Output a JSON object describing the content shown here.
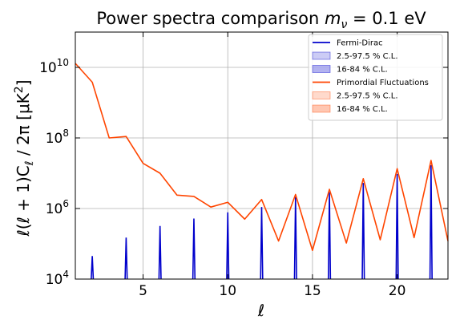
{
  "chart_data": {
    "type": "line",
    "title": "Power spectra comparison $m_\\nu = 0.1$ eV",
    "title_parts": {
      "text": "Power spectra comparison ",
      "math_m": "m",
      "math_sub": "ν",
      "math_rest": " = 0.1 eV"
    },
    "xlabel": "ℓ",
    "ylabel": "ℓ(ℓ + 1)C",
    "ylabel_sub": "ℓ",
    "ylabel_rest": " / 2π [μK",
    "ylabel_sup": "2",
    "ylabel_end": "]",
    "xlim": [
      1,
      23
    ],
    "ylim": [
      10000,
      100000000000
    ],
    "yscale": "log",
    "grid": true,
    "legend_position": "top-right",
    "x_ticks": [
      5,
      10,
      15,
      20
    ],
    "x_tick_labels": [
      "5",
      "10",
      "15",
      "20"
    ],
    "y_ticks": [
      10000,
      1000000,
      100000000,
      10000000000
    ],
    "y_tick_labels": [
      {
        "base": "10",
        "exp": "4"
      },
      {
        "base": "10",
        "exp": "6"
      },
      {
        "base": "10",
        "exp": "8"
      },
      {
        "base": "10",
        "exp": "10"
      }
    ],
    "series": [
      {
        "name": "Fermi-Dirac",
        "color": "#0000cc",
        "kind": "spikes",
        "peaks": [
          {
            "x": 2,
            "y": 45000
          },
          {
            "x": 4,
            "y": 150000
          },
          {
            "x": 6,
            "y": 320000
          },
          {
            "x": 8,
            "y": 520000
          },
          {
            "x": 10,
            "y": 780000
          },
          {
            "x": 12,
            "y": 1100000
          },
          {
            "x": 14,
            "y": 2100000
          },
          {
            "x": 16,
            "y": 2900000
          },
          {
            "x": 18,
            "y": 5300000
          },
          {
            "x": 20,
            "y": 9500000
          },
          {
            "x": 22,
            "y": 17000000
          }
        ]
      },
      {
        "name": "Primordial Fluctuations",
        "color": "#ff4500",
        "kind": "line",
        "x": [
          1,
          2,
          3,
          4,
          5,
          6,
          7,
          8,
          9,
          10,
          11,
          12,
          13,
          14,
          15,
          16,
          17,
          18,
          19,
          20,
          21,
          22,
          23
        ],
        "y": [
          13000000000,
          3800000000,
          100000000,
          110000000,
          19000000,
          10000000,
          2400000,
          2200000,
          1100000,
          1500000,
          500000,
          1800000,
          120000,
          2500000,
          65000,
          3500000,
          105000,
          7000000,
          130000,
          13500000,
          150000,
          23000000,
          120000
        ]
      }
    ],
    "legend": [
      {
        "label": "Fermi-Dirac",
        "kind": "line",
        "color": "#0000cc"
      },
      {
        "label": "2.5-97.5 % C.L.",
        "kind": "patch",
        "color": "#0000cc",
        "alpha": 0.2
      },
      {
        "label": "16-84 % C.L.",
        "kind": "patch",
        "color": "#0000cc",
        "alpha": 0.3
      },
      {
        "label": "Primordial Fluctuations",
        "kind": "line",
        "color": "#ff4500"
      },
      {
        "label": "2.5-97.5 % C.L.",
        "kind": "patch",
        "color": "#ff4500",
        "alpha": 0.2
      },
      {
        "label": "16-84 % C.L.",
        "kind": "patch",
        "color": "#ff4500",
        "alpha": 0.3
      }
    ]
  }
}
